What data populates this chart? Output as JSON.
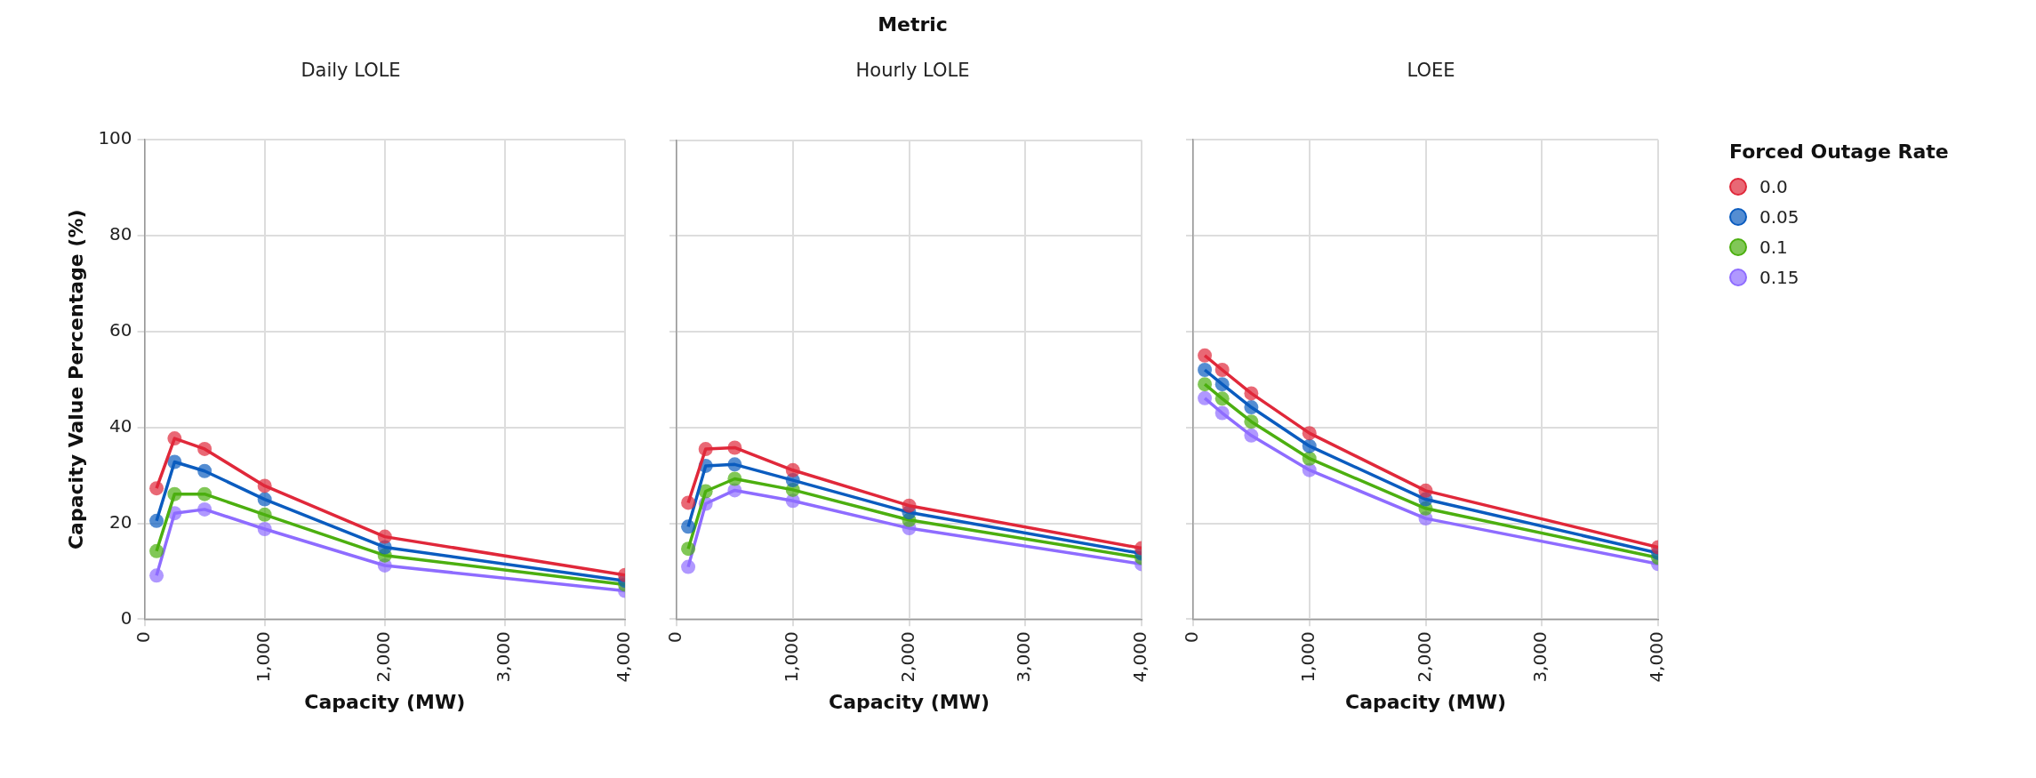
{
  "chart_data": [
    {
      "type": "line",
      "subtitle": "Daily LOLE",
      "xlabel": "Capacity (MW)",
      "ylabel": "Capacity Value Percentage (%)",
      "x": [
        100,
        250,
        500,
        1000,
        2000,
        4000
      ],
      "xlim": [
        0,
        4000
      ],
      "xticks": [
        {
          "value": 0,
          "label": "0"
        },
        {
          "value": 1000,
          "label": "1,000"
        },
        {
          "value": 2000,
          "label": "2,000"
        },
        {
          "value": 3000,
          "label": "3,000"
        },
        {
          "value": 4000,
          "label": "4,000"
        }
      ],
      "ylim": [
        0,
        100
      ],
      "yticks": [
        0,
        20,
        40,
        60,
        80,
        100
      ],
      "grid": true,
      "marker": "circle",
      "legend": false,
      "series": [
        {
          "color": "#e0283a",
          "values": [
            27.3,
            37.7,
            35.5,
            27.8,
            17.2,
            9.2
          ]
        },
        {
          "color": "#0b5cbf",
          "values": [
            20.5,
            32.8,
            30.9,
            25,
            15,
            8
          ]
        },
        {
          "color": "#4caf10",
          "values": [
            14.2,
            26.1,
            26.1,
            21.8,
            13.3,
            7.2
          ]
        },
        {
          "color": "#8e6cff",
          "values": [
            9.1,
            22.1,
            22.9,
            18.8,
            11.2,
            5.9
          ]
        }
      ]
    },
    {
      "type": "line",
      "title": "Metric",
      "subtitle": "Hourly LOLE",
      "xlabel": "Capacity (MW)",
      "x": [
        100,
        250,
        500,
        1000,
        2000,
        4000
      ],
      "xlim": [
        0,
        4000
      ],
      "xticks": [
        {
          "value": 0,
          "label": "0"
        },
        {
          "value": 1000,
          "label": "1,000"
        },
        {
          "value": 2000,
          "label": "2,000"
        },
        {
          "value": 3000,
          "label": "3,000"
        },
        {
          "value": 4000,
          "label": "4,000"
        }
      ],
      "ylim": [
        0,
        100
      ],
      "yticks": [
        0,
        20,
        40,
        60,
        80,
        100
      ],
      "tick_labels": "x",
      "grid": true,
      "marker": "circle",
      "legend": false,
      "series": [
        {
          "color": "#e0283a",
          "values": [
            24.3,
            35.5,
            35.8,
            31.1,
            23.7,
            14.8
          ]
        },
        {
          "color": "#0b5cbf",
          "values": [
            19.3,
            32,
            32.3,
            29,
            22.3,
            13.7
          ]
        },
        {
          "color": "#4caf10",
          "values": [
            14.7,
            26.7,
            29.3,
            27,
            20.7,
            12.8
          ]
        },
        {
          "color": "#8e6cff",
          "values": [
            10.9,
            24.1,
            26.9,
            24.7,
            19,
            11.5
          ]
        }
      ]
    },
    {
      "type": "line",
      "subtitle": "LOEE",
      "xlabel": "Capacity (MW)",
      "legend_title": "Forced Outage Rate",
      "x": [
        100,
        250,
        500,
        1000,
        2000,
        4000
      ],
      "xlim": [
        0,
        4000
      ],
      "xticks": [
        {
          "value": 0,
          "label": "0"
        },
        {
          "value": 1000,
          "label": "1,000"
        },
        {
          "value": 2000,
          "label": "2,000"
        },
        {
          "value": 3000,
          "label": "3,000"
        },
        {
          "value": 4000,
          "label": "4,000"
        }
      ],
      "ylim": [
        0,
        100
      ],
      "yticks": [
        0,
        20,
        40,
        60,
        80,
        100
      ],
      "tick_labels": "x",
      "grid": true,
      "marker": "circle",
      "legend": "right",
      "series": [
        {
          "name": "0.0",
          "color": "#e0283a",
          "values": [
            55,
            52,
            47.1,
            38.8,
            26.8,
            15
          ]
        },
        {
          "name": "0.05",
          "color": "#0b5cbf",
          "values": [
            52,
            49,
            44.2,
            36.1,
            25,
            13.8
          ]
        },
        {
          "name": "0.1",
          "color": "#4caf10",
          "values": [
            49,
            46,
            41.2,
            33.5,
            23.1,
            12.8
          ]
        },
        {
          "name": "0.15",
          "color": "#8e6cff",
          "values": [
            46.1,
            43,
            38.3,
            31.1,
            21,
            11.5
          ]
        }
      ]
    }
  ]
}
